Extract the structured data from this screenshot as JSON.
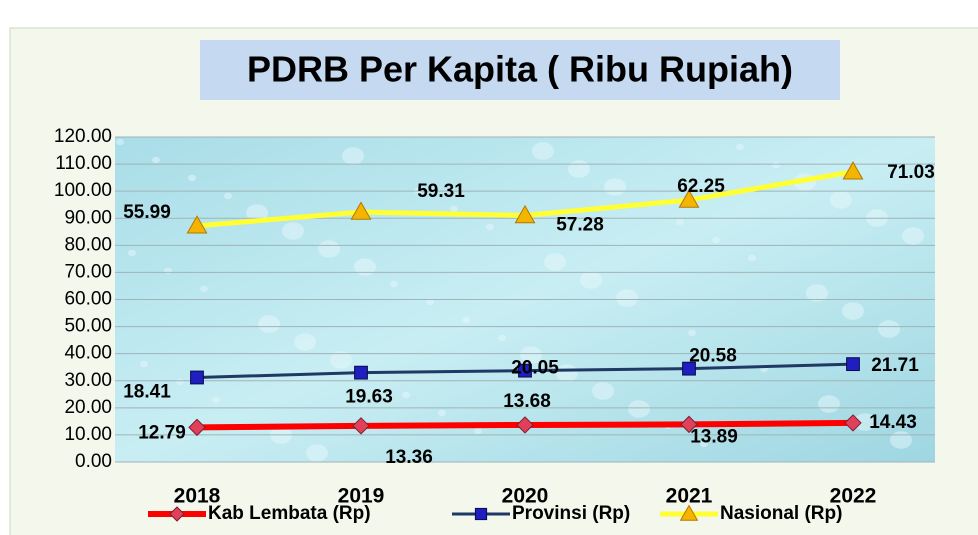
{
  "chart_data": {
    "type": "line",
    "stacked": true,
    "title": "PDRB Per Kapita  ( Ribu Rupiah)",
    "categories": [
      "2018",
      "2019",
      "2020",
      "2021",
      "2022"
    ],
    "series": [
      {
        "name": "Kab Lembata (Rp)",
        "color": "#ff0000",
        "marker_color": "#e0405a",
        "marker": "diamond",
        "values": [
          12.79,
          13.36,
          13.68,
          13.89,
          14.43
        ]
      },
      {
        "name": "Provinsi (Rp)",
        "color": "#1f3864",
        "marker_color": "#1f1fbf",
        "marker": "square",
        "values": [
          18.41,
          19.63,
          20.05,
          20.58,
          21.71
        ]
      },
      {
        "name": "Nasional (Rp)",
        "color": "#ffff33",
        "marker_color": "#f5b400",
        "marker": "triangle",
        "values": [
          55.99,
          59.31,
          57.28,
          62.25,
          71.03
        ]
      }
    ],
    "ylim": [
      0,
      120
    ],
    "yticks": [
      {
        "value": 0,
        "label": "0.00"
      },
      {
        "value": 10,
        "label": "10.00"
      },
      {
        "value": 20,
        "label": "20.00"
      },
      {
        "value": 30,
        "label": "30.00"
      },
      {
        "value": 40,
        "label": "40.00"
      },
      {
        "value": 50,
        "label": "50.00"
      },
      {
        "value": 60,
        "label": "60.00"
      },
      {
        "value": 70,
        "label": "70.00"
      },
      {
        "value": 80,
        "label": "80.00"
      },
      {
        "value": 90,
        "label": "90.00"
      },
      {
        "value": 100,
        "label": "100.00"
      },
      {
        "value": 110,
        "label": "110.00"
      },
      {
        "value": 120,
        "label": "120.00"
      }
    ],
    "grid": true,
    "legend": "bottom"
  }
}
